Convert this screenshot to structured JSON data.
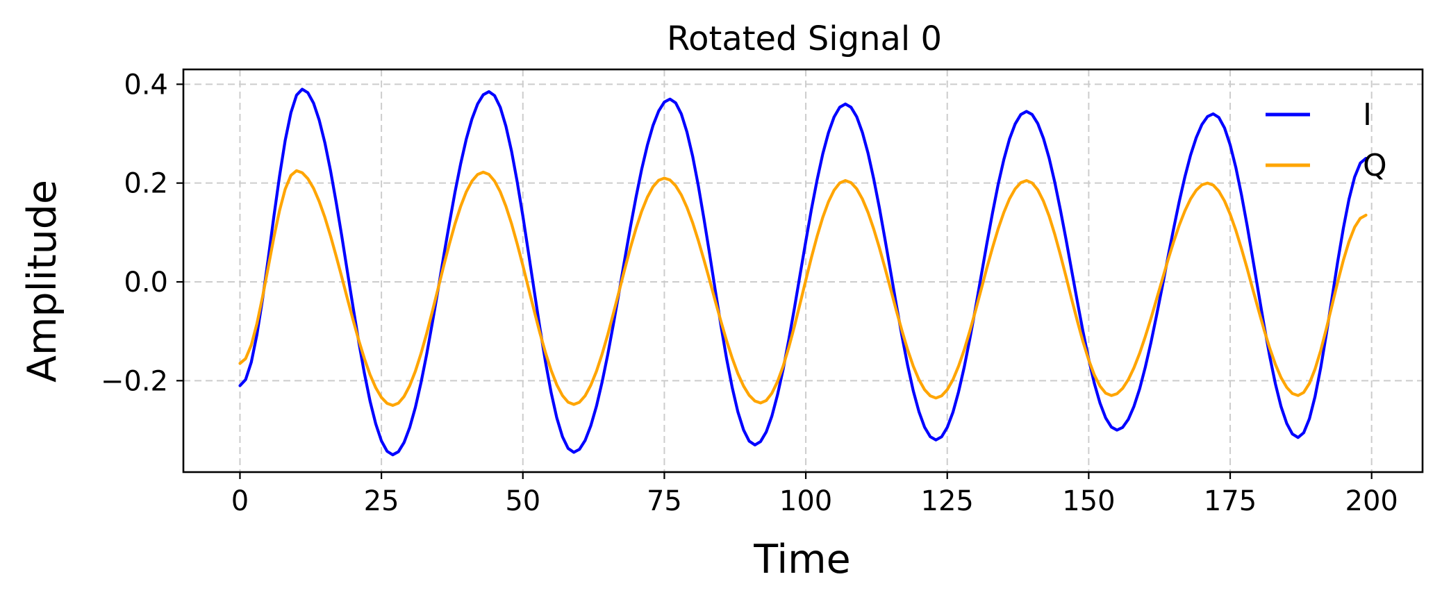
{
  "chart_data": {
    "type": "line",
    "title": "Rotated Signal 0",
    "xlabel": "Time",
    "ylabel": "Amplitude",
    "xlim": [
      -10,
      209
    ],
    "ylim": [
      -0.385,
      0.43
    ],
    "xticks": [
      0,
      25,
      50,
      75,
      100,
      125,
      150,
      175,
      200
    ],
    "xtick_labels": [
      "0",
      "25",
      "50",
      "75",
      "100",
      "125",
      "150",
      "175",
      "200"
    ],
    "yticks": [
      -0.2,
      0.0,
      0.2,
      0.4
    ],
    "ytick_labels": [
      "−0.2",
      "0.0",
      "0.2",
      "0.4"
    ],
    "grid": true,
    "legend": "top-right",
    "x": {
      "start": 0,
      "end": 199,
      "step": 1
    },
    "series": [
      {
        "name": "I",
        "color": "#0000ff",
        "peaks": [
          [
            -0.21,
            0.39,
            -0.35,
            0.385,
            -0.345,
            0.37,
            -0.33,
            0.36,
            -0.32,
            0.345,
            -0.3,
            0.34,
            -0.315,
            0.25
          ]
        ],
        "keypoints": [
          [
            0,
            -0.21
          ],
          [
            11,
            0.39
          ],
          [
            27,
            -0.35
          ],
          [
            44,
            0.385
          ],
          [
            59,
            -0.345
          ],
          [
            76,
            0.37
          ],
          [
            91,
            -0.33
          ],
          [
            107,
            0.36
          ],
          [
            123,
            -0.32
          ],
          [
            139,
            0.345
          ],
          [
            155,
            -0.3
          ],
          [
            172,
            0.34
          ],
          [
            187,
            -0.315
          ],
          [
            199,
            0.25
          ]
        ]
      },
      {
        "name": "Q",
        "color": "#ffa500",
        "keypoints": [
          [
            0,
            -0.165
          ],
          [
            10,
            0.225
          ],
          [
            27,
            -0.25
          ],
          [
            43,
            0.222
          ],
          [
            59,
            -0.248
          ],
          [
            75,
            0.21
          ],
          [
            92,
            -0.245
          ],
          [
            107,
            0.205
          ],
          [
            123,
            -0.235
          ],
          [
            139,
            0.205
          ],
          [
            154,
            -0.23
          ],
          [
            171,
            0.2
          ],
          [
            187,
            -0.23
          ],
          [
            199,
            0.135
          ]
        ]
      }
    ]
  }
}
